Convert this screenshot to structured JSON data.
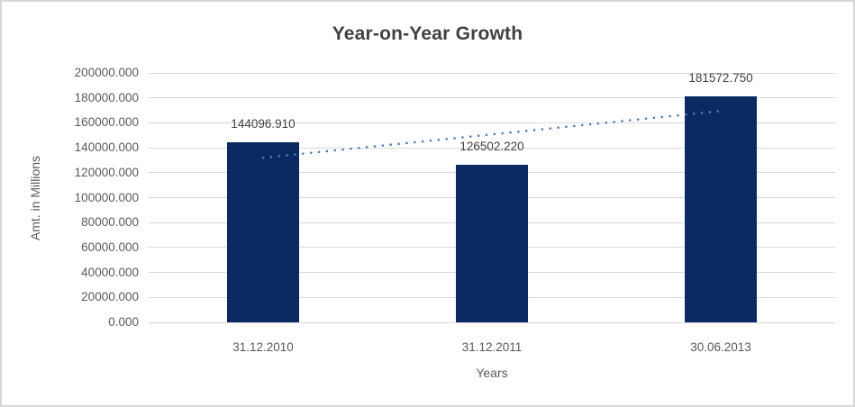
{
  "chart_data": {
    "type": "bar",
    "title": "Year-on-Year Growth",
    "xlabel": "Years",
    "ylabel": "Amt. in Millions",
    "categories": [
      "31.12.2010",
      "31.12.2011",
      "30.06.2013"
    ],
    "values": [
      144096.91,
      126502.22,
      181572.75
    ],
    "data_labels": [
      "144096.910",
      "126502.220",
      "181572.750"
    ],
    "ylim": [
      0,
      200000
    ],
    "ytick_step": 20000,
    "ytick_labels": [
      "0.000",
      "20000.000",
      "40000.000",
      "60000.000",
      "80000.000",
      "100000.000",
      "120000.000",
      "140000.000",
      "160000.000",
      "180000.000",
      "200000.000"
    ],
    "grid": true,
    "legend": "none",
    "bar_color": "#0b2a63",
    "trendline": {
      "type": "linear",
      "style": "dotted",
      "color": "#4a7ebb",
      "start_value": 131990,
      "end_value": 169460
    }
  },
  "colors": {
    "title_text": "#404040",
    "axis_text": "#595959",
    "data_label_text": "#404040",
    "gridline": "#d9d9d9",
    "border": "#d7d7d7",
    "background": "#ffffff"
  }
}
